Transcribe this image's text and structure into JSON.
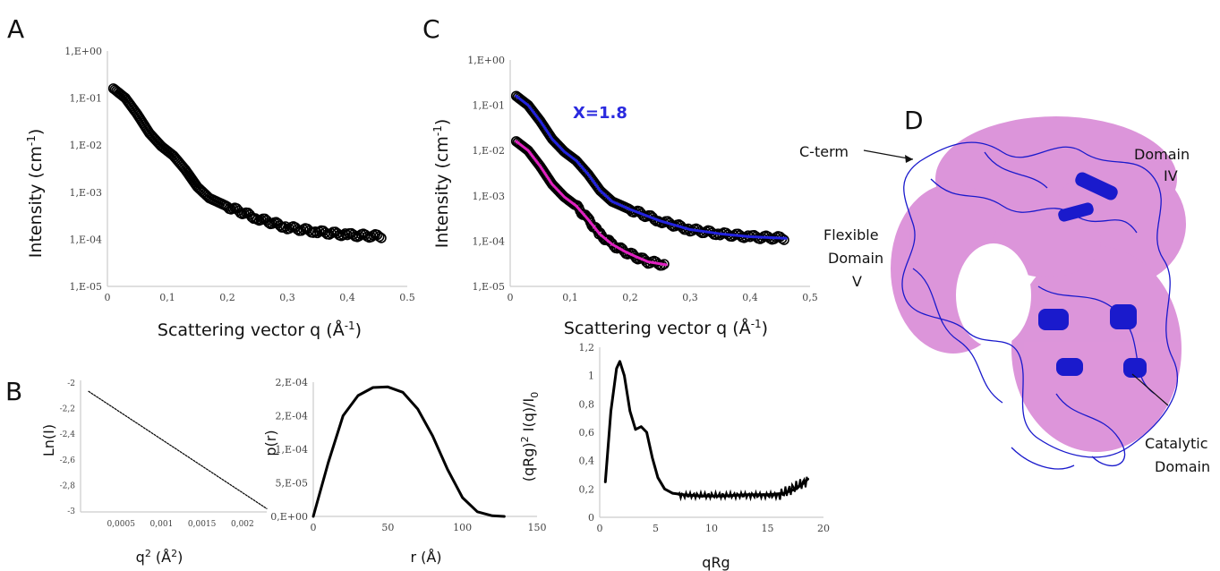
{
  "panels": {
    "A": "A",
    "B": "B",
    "C": "C",
    "D": "D"
  },
  "panel_D": {
    "labels": {
      "cterm": "C-term",
      "domain_iv_1": "Domain",
      "domain_iv_2": "IV",
      "flex_1": "Flexible",
      "flex_2": "Domain",
      "flex_3": "V",
      "cat_1": "Catalytic",
      "cat_2": "Domain"
    },
    "colors": {
      "surface": "#d98ad6",
      "ribbon": "#1a1acc"
    }
  },
  "chart_data": [
    {
      "id": "A",
      "type": "scatter",
      "title": "",
      "xlabel": "Scattering vector q (Å-1)",
      "ylabel": "Intensity (cm-1)",
      "yscale": "log",
      "xlim": [
        0,
        0.5
      ],
      "ylim": [
        1e-05,
        1
      ],
      "xticks": [
        "0",
        "0,1",
        "0,2",
        "0,3",
        "0,4",
        "0.5"
      ],
      "yticks": [
        "1,E+00",
        "1,E-01",
        "1,E-02",
        "1,E-03",
        "1,E-04",
        "1,E-05"
      ],
      "series": [
        {
          "color": "#000000",
          "x": [
            0.01,
            0.03,
            0.05,
            0.07,
            0.09,
            0.11,
            0.13,
            0.15,
            0.17,
            0.2,
            0.25,
            0.3,
            0.35,
            0.4,
            0.46
          ],
          "y": [
            0.16,
            0.1,
            0.045,
            0.018,
            0.0095,
            0.006,
            0.003,
            0.0013,
            0.00075,
            0.0005,
            0.00028,
            0.00018,
            0.000145,
            0.000125,
            0.000115
          ]
        }
      ]
    },
    {
      "id": "B-guinier",
      "type": "line",
      "title": "",
      "xlabel": "q2 (Å2)",
      "ylabel": "Ln(I)",
      "xlim": [
        0,
        0.0023
      ],
      "ylim": [
        -3.05,
        -1.85
      ],
      "xticks": [
        "0,0005",
        "0,001",
        "0,0015",
        "0,002"
      ],
      "yticks": [
        "-2",
        "-2,2",
        "-2,4",
        "-2,6",
        "-2,8",
        "-3"
      ],
      "series": [
        {
          "color": "#000000",
          "x": [
            0.0001,
            0.0023
          ],
          "y": [
            -1.95,
            -3.02
          ]
        }
      ]
    },
    {
      "id": "B-pr",
      "type": "line",
      "title": "",
      "xlabel": "r (Å)",
      "ylabel": "p(r)",
      "xlim": [
        0,
        150
      ],
      "ylim": [
        0,
        0.0002
      ],
      "xticks": [
        "0",
        "50",
        "100",
        "150"
      ],
      "yticks": [
        "0,E+00",
        "5,E-05",
        "1,E-04",
        "2,E-04",
        "2,E-04"
      ],
      "series": [
        {
          "color": "#000000",
          "x": [
            0,
            10,
            20,
            30,
            40,
            50,
            60,
            70,
            80,
            90,
            100,
            110,
            120,
            128
          ],
          "y": [
            0,
            8e-05,
            0.00015,
            0.00018,
            0.000192,
            0.000193,
            0.000185,
            0.00016,
            0.00012,
            7e-05,
            2.8e-05,
            7e-06,
            1e-06,
            0
          ]
        }
      ]
    },
    {
      "id": "C",
      "type": "line",
      "title": "",
      "xlabel": "Scattering vector q (Å-1)",
      "ylabel": "Intensity (cm-1)",
      "yscale": "log",
      "xlim": [
        0,
        0.5
      ],
      "ylim": [
        1e-05,
        1
      ],
      "xticks": [
        "0",
        "0,1",
        "0,2",
        "0,3",
        "0,4",
        "0,5"
      ],
      "yticks": [
        "1,E+00",
        "1,E-01",
        "1,E-02",
        "1,E-03",
        "1,E-04",
        "1,E-05"
      ],
      "annotation": "X=1.8",
      "series": [
        {
          "color": "#000000",
          "style": "markers",
          "x": [
            0.01,
            0.03,
            0.05,
            0.07,
            0.09,
            0.11,
            0.13,
            0.15,
            0.17,
            0.2,
            0.25,
            0.3,
            0.35,
            0.4,
            0.46
          ],
          "y": [
            0.16,
            0.1,
            0.045,
            0.018,
            0.0095,
            0.006,
            0.003,
            0.0013,
            0.00075,
            0.0005,
            0.00028,
            0.00018,
            0.000145,
            0.000125,
            0.000115
          ]
        },
        {
          "color": "#2222dd",
          "style": "line",
          "x": [
            0.01,
            0.03,
            0.05,
            0.07,
            0.09,
            0.11,
            0.13,
            0.15,
            0.17,
            0.2,
            0.25,
            0.3,
            0.35,
            0.4,
            0.46
          ],
          "y": [
            0.16,
            0.1,
            0.045,
            0.018,
            0.0095,
            0.006,
            0.003,
            0.0013,
            0.00075,
            0.0005,
            0.00028,
            0.00018,
            0.000145,
            0.000125,
            0.000115
          ]
        },
        {
          "color": "#000000",
          "style": "markers",
          "x": [
            0.01,
            0.03,
            0.05,
            0.07,
            0.09,
            0.11,
            0.13,
            0.15,
            0.17,
            0.19,
            0.21,
            0.23,
            0.26
          ],
          "y": [
            0.016,
            0.01,
            0.0045,
            0.0018,
            0.00095,
            0.0006,
            0.0003,
            0.00014,
            8.5e-05,
            6e-05,
            4.5e-05,
            3.5e-05,
            3e-05
          ]
        },
        {
          "color": "#e020c0",
          "style": "line",
          "x": [
            0.01,
            0.03,
            0.05,
            0.07,
            0.09,
            0.11,
            0.13,
            0.15,
            0.17,
            0.19,
            0.21,
            0.23,
            0.26
          ],
          "y": [
            0.016,
            0.01,
            0.0045,
            0.0018,
            0.00095,
            0.0006,
            0.0003,
            0.00014,
            8.5e-05,
            6e-05,
            4.5e-05,
            3.5e-05,
            3e-05
          ]
        }
      ]
    },
    {
      "id": "kratky",
      "type": "line",
      "title": "",
      "xlabel": "qRg",
      "ylabel": "(qRg)2 I(q)/I0",
      "xlim": [
        0,
        20
      ],
      "ylim": [
        0,
        1.2
      ],
      "xticks": [
        "0",
        "5",
        "10",
        "15",
        "20"
      ],
      "yticks": [
        "0",
        "0,2",
        "0,4",
        "0,6",
        "0,8",
        "1",
        "1,2"
      ],
      "series": [
        {
          "color": "#000000",
          "x": [
            0.5,
            1,
            1.5,
            1.8,
            2.2,
            2.7,
            3.2,
            3.7,
            4.2,
            4.7,
            5.2,
            5.8,
            6.5,
            7.5,
            9,
            11,
            13,
            15,
            16.5,
            17.5,
            18.2,
            18.6
          ],
          "y": [
            0.25,
            0.75,
            1.05,
            1.1,
            1.0,
            0.75,
            0.62,
            0.64,
            0.6,
            0.42,
            0.28,
            0.2,
            0.17,
            0.16,
            0.15,
            0.15,
            0.16,
            0.16,
            0.17,
            0.2,
            0.24,
            0.27
          ]
        }
      ]
    }
  ]
}
